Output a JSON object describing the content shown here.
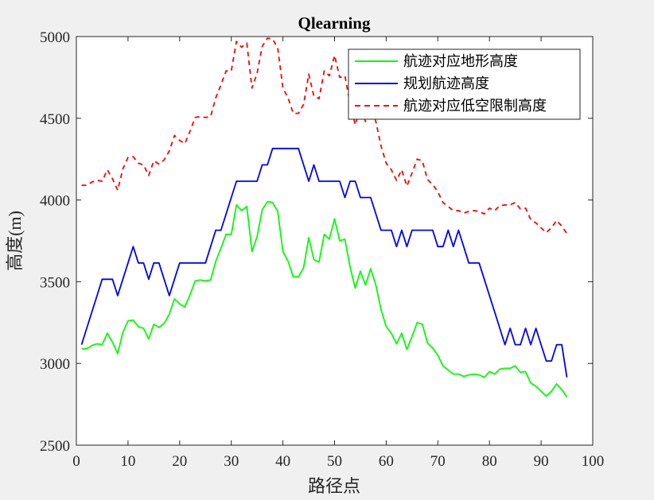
{
  "chart_data": {
    "type": "line",
    "title": "Qlearning",
    "xlabel": "路径点",
    "ylabel": "高度(m)",
    "xlim": [
      0,
      100
    ],
    "ylim": [
      2500,
      5000
    ],
    "xticks": [
      0,
      10,
      20,
      30,
      40,
      50,
      60,
      70,
      80,
      90,
      100
    ],
    "yticks": [
      2500,
      3000,
      3500,
      4000,
      4500,
      5000
    ],
    "grid": false,
    "legend_position": "top-right",
    "series": [
      {
        "name": "航迹对应地形高度",
        "color": "#00ff00",
        "style": "solid",
        "x": [
          1,
          2,
          3,
          4,
          5,
          6,
          7,
          8,
          9,
          10,
          11,
          12,
          13,
          14,
          15,
          16,
          17,
          18,
          19,
          20,
          21,
          22,
          23,
          24,
          25,
          26,
          27,
          28,
          29,
          30,
          31,
          32,
          33,
          34,
          35,
          36,
          37,
          38,
          39,
          40,
          41,
          42,
          43,
          44,
          45,
          46,
          47,
          48,
          49,
          50,
          51,
          52,
          53,
          54,
          55,
          56,
          57,
          58,
          59,
          60,
          61,
          62,
          63,
          64,
          65,
          66,
          67,
          68,
          69,
          70,
          71,
          72,
          73,
          74,
          75,
          76,
          77,
          78,
          79,
          80,
          81,
          82,
          83,
          84,
          85,
          86,
          87,
          88,
          89,
          90,
          91,
          92,
          93,
          94,
          95
        ],
        "y": [
          3090,
          3090,
          3110,
          3120,
          3115,
          3185,
          3130,
          3060,
          3190,
          3260,
          3265,
          3225,
          3215,
          3150,
          3240,
          3220,
          3245,
          3300,
          3395,
          3365,
          3345,
          3420,
          3505,
          3510,
          3505,
          3510,
          3625,
          3705,
          3790,
          3790,
          3970,
          3935,
          3960,
          3685,
          3775,
          3940,
          3990,
          3985,
          3930,
          3685,
          3625,
          3530,
          3530,
          3585,
          3770,
          3635,
          3620,
          3790,
          3760,
          3885,
          3750,
          3760,
          3590,
          3460,
          3565,
          3480,
          3580,
          3480,
          3330,
          3225,
          3185,
          3120,
          3185,
          3085,
          3165,
          3250,
          3240,
          3125,
          3095,
          3050,
          2985,
          2960,
          2935,
          2935,
          2920,
          2930,
          2935,
          2930,
          2915,
          2950,
          2935,
          2965,
          2970,
          2970,
          2985,
          2945,
          2950,
          2880,
          2860,
          2830,
          2800,
          2830,
          2875,
          2840,
          2795
        ]
      },
      {
        "name": "规划航迹高度",
        "color": "#0000ff",
        "style": "solid",
        "x": [
          1,
          2,
          3,
          4,
          5,
          6,
          7,
          8,
          9,
          10,
          11,
          12,
          13,
          14,
          15,
          16,
          17,
          18,
          19,
          20,
          21,
          22,
          23,
          24,
          25,
          26,
          27,
          28,
          29,
          30,
          31,
          32,
          33,
          34,
          35,
          36,
          37,
          38,
          39,
          40,
          41,
          42,
          43,
          44,
          45,
          46,
          47,
          48,
          49,
          50,
          51,
          52,
          53,
          54,
          55,
          56,
          57,
          58,
          59,
          60,
          61,
          62,
          63,
          64,
          65,
          66,
          67,
          68,
          69,
          70,
          71,
          72,
          73,
          74,
          75,
          76,
          77,
          78,
          79,
          80,
          81,
          82,
          83,
          84,
          85,
          86,
          87,
          88,
          89,
          90,
          91,
          92,
          93,
          94,
          95
        ],
        "y": [
          3115,
          3215,
          3315,
          3415,
          3515,
          3515,
          3515,
          3415,
          3515,
          3615,
          3715,
          3615,
          3615,
          3515,
          3615,
          3615,
          3515,
          3415,
          3515,
          3615,
          3615,
          3615,
          3615,
          3615,
          3615,
          3715,
          3815,
          3815,
          3915,
          4015,
          4115,
          4115,
          4115,
          4115,
          4115,
          4215,
          4215,
          4315,
          4315,
          4315,
          4315,
          4315,
          4315,
          4215,
          4115,
          4215,
          4115,
          4115,
          4115,
          4115,
          4115,
          4015,
          4115,
          4115,
          4015,
          4015,
          4015,
          3915,
          3815,
          3815,
          3815,
          3715,
          3815,
          3715,
          3815,
          3815,
          3815,
          3815,
          3815,
          3715,
          3715,
          3815,
          3715,
          3815,
          3715,
          3615,
          3615,
          3615,
          3515,
          3415,
          3315,
          3215,
          3115,
          3215,
          3115,
          3115,
          3215,
          3115,
          3215,
          3115,
          3015,
          3015,
          3115,
          3115,
          2915
        ]
      },
      {
        "name": "航迹对应低空限制高度",
        "color": "#ff0000",
        "style": "dashed",
        "x": [
          1,
          2,
          3,
          4,
          5,
          6,
          7,
          8,
          9,
          10,
          11,
          12,
          13,
          14,
          15,
          16,
          17,
          18,
          19,
          20,
          21,
          22,
          23,
          24,
          25,
          26,
          27,
          28,
          29,
          30,
          31,
          32,
          33,
          34,
          35,
          36,
          37,
          38,
          39,
          40,
          41,
          42,
          43,
          44,
          45,
          46,
          47,
          48,
          49,
          50,
          51,
          52,
          53,
          54,
          55,
          56,
          57,
          58,
          59,
          60,
          61,
          62,
          63,
          64,
          65,
          66,
          67,
          68,
          69,
          70,
          71,
          72,
          73,
          74,
          75,
          76,
          77,
          78,
          79,
          80,
          81,
          82,
          83,
          84,
          85,
          86,
          87,
          88,
          89,
          90,
          91,
          92,
          93,
          94,
          95
        ],
        "y": [
          4090,
          4090,
          4110,
          4120,
          4115,
          4185,
          4130,
          4060,
          4190,
          4260,
          4265,
          4225,
          4215,
          4150,
          4240,
          4220,
          4245,
          4300,
          4395,
          4365,
          4345,
          4420,
          4505,
          4510,
          4505,
          4510,
          4625,
          4705,
          4790,
          4790,
          4970,
          4935,
          4960,
          4685,
          4775,
          4940,
          4990,
          4985,
          4930,
          4685,
          4625,
          4530,
          4530,
          4585,
          4770,
          4635,
          4620,
          4790,
          4760,
          4885,
          4750,
          4760,
          4590,
          4460,
          4565,
          4480,
          4580,
          4480,
          4330,
          4225,
          4185,
          4120,
          4185,
          4085,
          4165,
          4250,
          4240,
          4125,
          4095,
          4050,
          3985,
          3960,
          3935,
          3935,
          3920,
          3930,
          3935,
          3930,
          3915,
          3950,
          3935,
          3965,
          3970,
          3970,
          3985,
          3945,
          3950,
          3880,
          3860,
          3830,
          3800,
          3830,
          3875,
          3840,
          3795
        ]
      }
    ]
  }
}
